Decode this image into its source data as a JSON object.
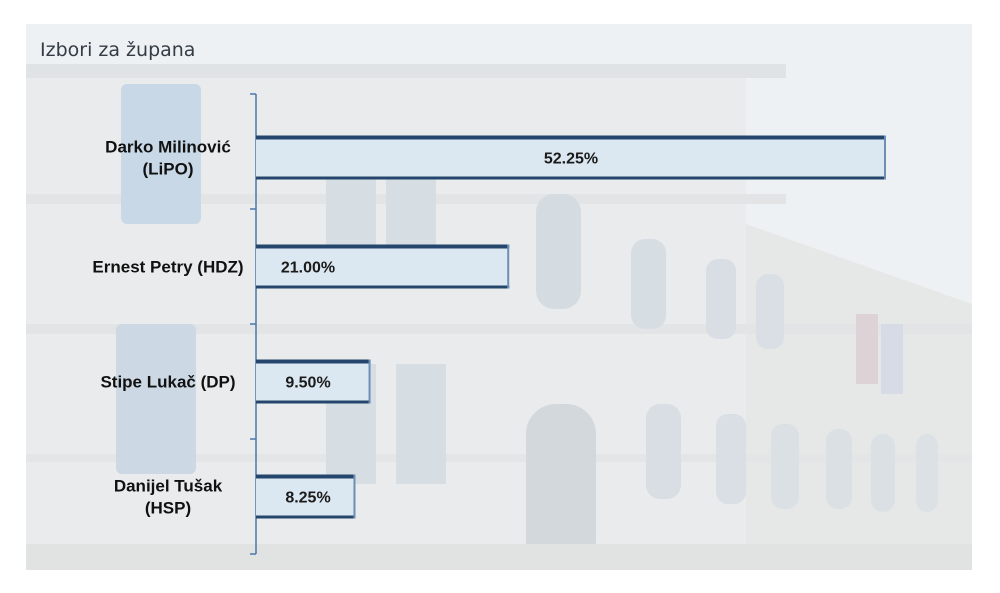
{
  "chart_data": {
    "type": "bar",
    "orientation": "horizontal",
    "title": "Izbori za župana",
    "categories": [
      [
        "Darko Milinović",
        "(LiPO)"
      ],
      [
        "Ernest Petry (HDZ)"
      ],
      [
        "Stipe Lukač (DP)"
      ],
      [
        "Danijel Tušak",
        "(HSP)"
      ]
    ],
    "values": [
      52.25,
      21.0,
      9.5,
      8.25
    ],
    "data_labels": [
      "52.25%",
      "21.00%",
      "9.50%",
      "8.25%"
    ],
    "xlim": [
      0,
      60
    ],
    "grid": false,
    "legend": "none",
    "colors": {
      "bar_fill": "#dce8f1",
      "bar_edge": "#24466c",
      "axis": "#4a78a8",
      "label": "#111111"
    }
  }
}
